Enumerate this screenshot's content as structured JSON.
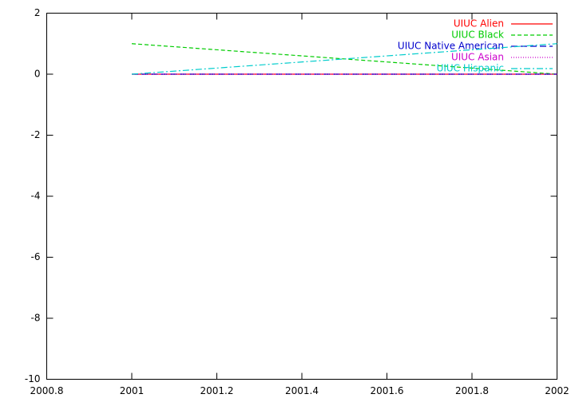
{
  "chart_data": {
    "type": "line",
    "x": [
      2001,
      2002
    ],
    "series": [
      {
        "name": "UIUC Alien",
        "color": "#ff0000",
        "values": [
          0,
          0
        ]
      },
      {
        "name": "UIUC Black",
        "color": "#00cc00",
        "values": [
          1,
          0
        ]
      },
      {
        "name": "UIUC Native American",
        "color": "#0000cc",
        "values": [
          0,
          0
        ]
      },
      {
        "name": "UIUC Asian",
        "color": "#cc00cc",
        "values": [
          0,
          0
        ]
      },
      {
        "name": "UIUC Hispanic",
        "color": "#00cccc",
        "values": [
          0,
          1
        ]
      }
    ],
    "xlim": [
      2000.8,
      2002
    ],
    "xticks": [
      2000.8,
      2001,
      2001.2,
      2001.4,
      2001.6,
      2001.8,
      2002
    ],
    "ylim": [
      -10,
      2
    ],
    "yticks": [
      -10,
      -8,
      -6,
      -4,
      -2,
      0,
      2
    ],
    "legend": "top-right"
  }
}
